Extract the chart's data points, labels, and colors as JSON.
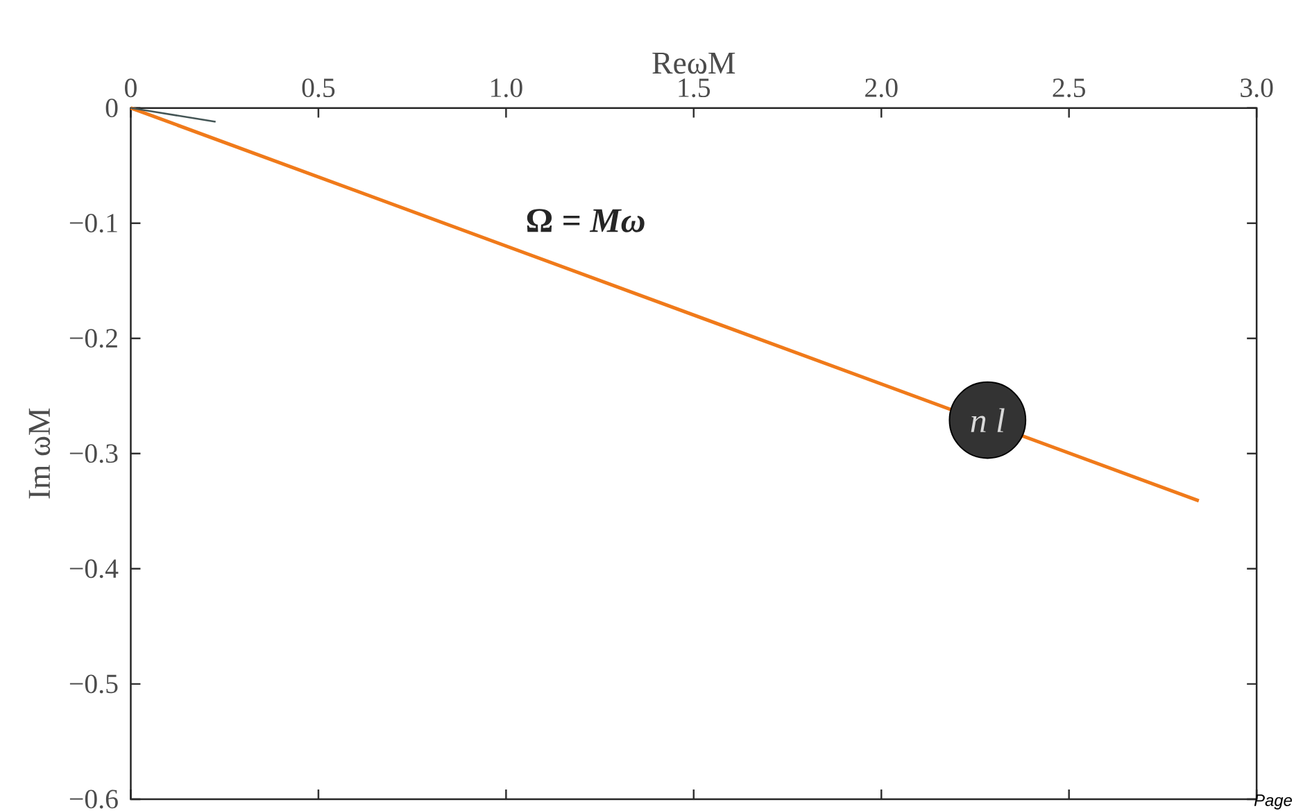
{
  "chart_data": {
    "type": "line",
    "xlabel": "ReωM",
    "ylabel": "Im ωM",
    "xlim": [
      0,
      3
    ],
    "ylim": [
      -0.6,
      0
    ],
    "xticks": [
      0,
      0.5,
      {
        "value": 1,
        "label": "1.0"
      },
      1.5,
      {
        "value": 2,
        "label": "2.0"
      },
      2.5,
      {
        "value": 3,
        "label": "3.0"
      }
    ],
    "yticks": [
      0,
      {
        "value": -0.1,
        "label": "−0.1"
      },
      {
        "value": -0.2,
        "label": "−0.2"
      },
      {
        "value": -0.3,
        "label": "−0.3"
      },
      {
        "value": -0.4,
        "label": "−0.4"
      },
      {
        "value": -0.5,
        "label": "−0.5"
      },
      {
        "value": -0.6,
        "label": "−0.6"
      }
    ],
    "series": [
      {
        "color": "#f07a1a",
        "x": [
          0,
          2.846
        ],
        "values": [
          0,
          -0.341
        ]
      },
      {
        "color": "#445555",
        "x": [
          0,
          0.226
        ],
        "values": [
          0,
          -0.012
        ]
      }
    ],
    "annotations": [
      "Ω = *Mω*",
      {
        "text": "*n l*",
        "x": 2.283,
        "y": -0.271
      },
      "Page"
    ],
    "line_style": "solid",
    "marker": "none"
  }
}
